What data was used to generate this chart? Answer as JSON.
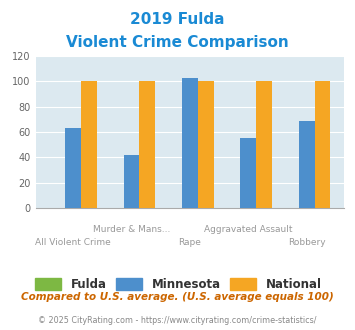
{
  "title_line1": "2019 Fulda",
  "title_line2": "Violent Crime Comparison",
  "categories": [
    "All Violent Crime",
    "Murder & Mans...",
    "Rape",
    "Aggravated Assault",
    "Robbery"
  ],
  "fulda": [
    0,
    0,
    0,
    0,
    0
  ],
  "minnesota": [
    63,
    42,
    103,
    55,
    69
  ],
  "national": [
    100,
    100,
    100,
    100,
    100
  ],
  "fulda_color": "#7db843",
  "minnesota_color": "#4d8fcc",
  "national_color": "#f5a623",
  "ylim": [
    0,
    120
  ],
  "yticks": [
    0,
    20,
    40,
    60,
    80,
    100,
    120
  ],
  "bg_color": "#dce9f0",
  "title_color": "#1a8ad4",
  "xlabel_color": "#999999",
  "footer_text": "Compared to U.S. average. (U.S. average equals 100)",
  "credit_text": "© 2025 CityRating.com - https://www.cityrating.com/crime-statistics/",
  "footer_color": "#cc6600",
  "credit_color": "#888888",
  "legend_text_color": "#333333",
  "top_labels": [
    "",
    "Murder & Mans...",
    "",
    "Aggravated Assault",
    ""
  ],
  "bot_labels": [
    "All Violent Crime",
    "",
    "Rape",
    "",
    "Robbery"
  ]
}
